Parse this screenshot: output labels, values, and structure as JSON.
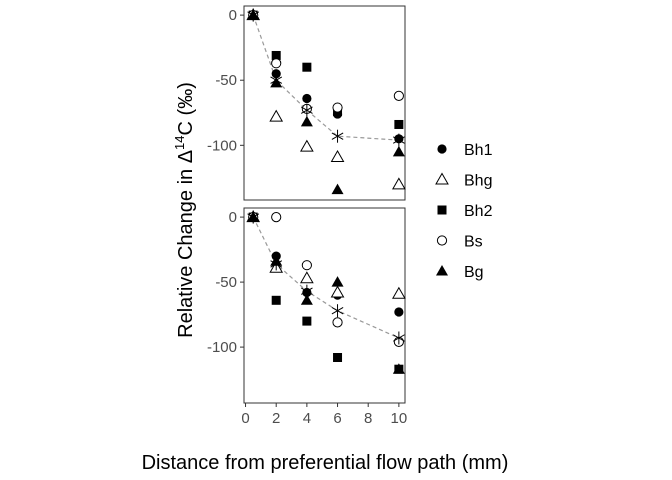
{
  "chart_data": {
    "type": "scatter",
    "xlabel": "Distance from preferential flow path (mm)",
    "ylabel_prefix": "Relative Change in Δ",
    "ylabel_sup": "14",
    "ylabel_suffix": "C (‰)",
    "x_ticks": [
      0,
      2,
      4,
      6,
      8,
      10
    ],
    "xlim": [
      -0.1,
      10.4
    ],
    "legend_position": "right",
    "grid": false,
    "legend": [
      {
        "name": "Bh1",
        "marker": "circle-filled"
      },
      {
        "name": "Bhg",
        "marker": "triangle-open"
      },
      {
        "name": "Bh2",
        "marker": "square-filled"
      },
      {
        "name": "Bs",
        "marker": "circle-open"
      },
      {
        "name": "Bg",
        "marker": "triangle-filled"
      }
    ],
    "panels": [
      {
        "ylim": [
          -142,
          7
        ],
        "y_ticks": [
          0,
          -50,
          -100
        ],
        "series": [
          {
            "name": "Bh1",
            "x": [
              0.5,
              2,
              4,
              6,
              10
            ],
            "y": [
              0,
              -45,
              -64,
              -76,
              -95
            ]
          },
          {
            "name": "Bhg",
            "x": [
              0.5,
              2,
              4,
              6,
              10
            ],
            "y": [
              0,
              -78,
              -101,
              -109,
              -130
            ]
          },
          {
            "name": "Bh2",
            "x": [
              0.5,
              2,
              4,
              6,
              10
            ],
            "y": [
              0,
              -31,
              -40,
              -74,
              -84
            ]
          },
          {
            "name": "Bs",
            "x": [
              0.5,
              2,
              4,
              6,
              10
            ],
            "y": [
              0,
              -37,
              -72,
              -71,
              -62
            ]
          },
          {
            "name": "Bg",
            "x": [
              0.5,
              2,
              4,
              6,
              10
            ],
            "y": [
              0,
              -52,
              -82,
              -134,
              -105
            ]
          }
        ],
        "mean": {
          "x": [
            0.5,
            2,
            4,
            6,
            10
          ],
          "y": [
            0,
            -50,
            -73,
            -93,
            -96
          ]
        }
      },
      {
        "ylim": [
          -143,
          7
        ],
        "y_ticks": [
          0,
          -50,
          -100
        ],
        "series": [
          {
            "name": "Bh1",
            "x": [
              0.5,
              2,
              4,
              6,
              10
            ],
            "y": [
              0,
              -30,
              -58,
              -60,
              -73
            ]
          },
          {
            "name": "Bhg",
            "x": [
              0.5,
              2,
              4,
              6,
              10
            ],
            "y": [
              0,
              -39,
              -47,
              -58,
              -59
            ]
          },
          {
            "name": "Bh2",
            "x": [
              0.5,
              2,
              4,
              6,
              10
            ],
            "y": [
              0,
              -64,
              -80,
              -108,
              -117
            ]
          },
          {
            "name": "Bs",
            "x": [
              0.5,
              2,
              4,
              6,
              10
            ],
            "y": [
              0,
              0,
              -37,
              -81,
              -96
            ]
          },
          {
            "name": "Bg",
            "x": [
              0.5,
              2,
              4,
              6,
              10
            ],
            "y": [
              0,
              -34,
              -64,
              -50,
              -117
            ]
          }
        ],
        "mean": {
          "x": [
            0.5,
            2,
            4,
            6,
            10
          ],
          "y": [
            0,
            -36,
            -57,
            -72,
            -93
          ]
        }
      }
    ]
  }
}
